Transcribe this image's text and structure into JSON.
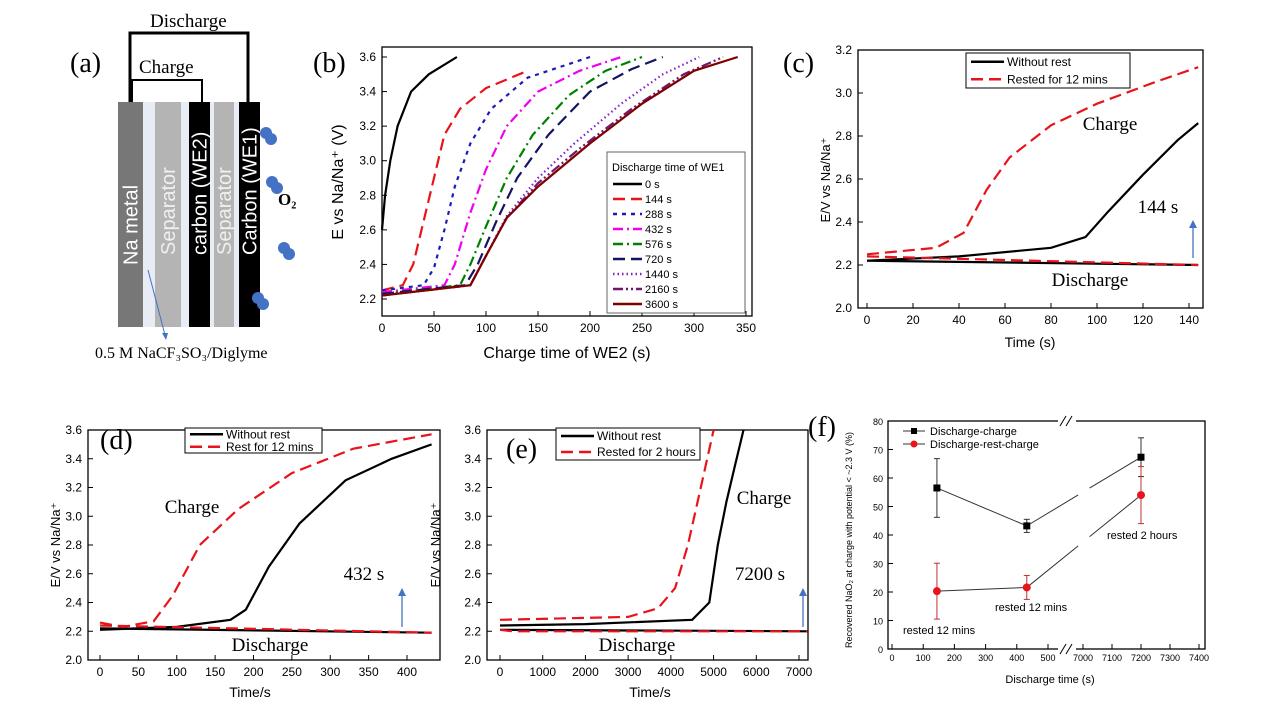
{
  "panel_labels": [
    "(a)",
    "(b)",
    "(c)",
    "(d)",
    "(e)",
    "(f)"
  ],
  "diagram": {
    "discharge_label": "Discharge",
    "charge_label": "Charge",
    "layers": [
      "Na metal",
      "Separator",
      "carbon (WE2)",
      "Separator",
      "Carbon (WE1)"
    ],
    "gas_label": "O₂",
    "electrolyte_label": "0.5 M NaCF₃SO₃/Diglyme",
    "colors": {
      "na_metal": "#777777",
      "separator": "#b4b4b4",
      "carbon": "#000000",
      "electrolyte": "#e8edf5",
      "o2": "#4472c4"
    }
  },
  "chart_data": [
    {
      "id": "b",
      "type": "line",
      "xlabel": "Charge time of WE2 (s)",
      "ylabel": "E vs Na/Na⁺ (V)",
      "xlim": [
        0,
        350
      ],
      "ylim": [
        2.2,
        3.6
      ],
      "xticks": [
        0,
        50,
        100,
        150,
        200,
        250,
        300,
        350
      ],
      "yticks": [
        2.2,
        2.4,
        2.6,
        2.8,
        3.0,
        3.2,
        3.4,
        3.6
      ],
      "legend_title": "Discharge time of WE1",
      "legend_placement": "bottom-right",
      "series": [
        {
          "name": "0 s",
          "color": "#000000",
          "style": "solid",
          "points": [
            [
              0,
              2.6
            ],
            [
              3,
              2.8
            ],
            [
              8,
              3.0
            ],
            [
              15,
              3.2
            ],
            [
              28,
              3.4
            ],
            [
              45,
              3.5
            ],
            [
              72,
              3.6
            ]
          ]
        },
        {
          "name": "144 s",
          "color": "#e8141c",
          "style": "dash",
          "points": [
            [
              0,
              2.25
            ],
            [
              20,
              2.28
            ],
            [
              30,
              2.4
            ],
            [
              40,
              2.65
            ],
            [
              50,
              2.9
            ],
            [
              60,
              3.15
            ],
            [
              75,
              3.3
            ],
            [
              100,
              3.42
            ],
            [
              140,
              3.52
            ]
          ]
        },
        {
          "name": "288 s",
          "color": "#1c1cb4",
          "style": "shortdash",
          "points": [
            [
              0,
              2.25
            ],
            [
              40,
              2.28
            ],
            [
              50,
              2.38
            ],
            [
              60,
              2.6
            ],
            [
              70,
              2.85
            ],
            [
              85,
              3.1
            ],
            [
              105,
              3.3
            ],
            [
              140,
              3.48
            ],
            [
              200,
              3.6
            ]
          ]
        },
        {
          "name": "432 s",
          "color": "#f000f0",
          "style": "dashdot",
          "points": [
            [
              0,
              2.24
            ],
            [
              60,
              2.28
            ],
            [
              70,
              2.4
            ],
            [
              85,
              2.7
            ],
            [
              100,
              2.95
            ],
            [
              120,
              3.2
            ],
            [
              150,
              3.4
            ],
            [
              190,
              3.52
            ],
            [
              230,
              3.6
            ]
          ]
        },
        {
          "name": "576 s",
          "color": "#008000",
          "style": "dashdot",
          "points": [
            [
              0,
              2.23
            ],
            [
              75,
              2.28
            ],
            [
              85,
              2.4
            ],
            [
              100,
              2.62
            ],
            [
              120,
              2.9
            ],
            [
              145,
              3.15
            ],
            [
              180,
              3.38
            ],
            [
              215,
              3.52
            ],
            [
              250,
              3.6
            ]
          ]
        },
        {
          "name": "720 s",
          "color": "#141464",
          "style": "dash",
          "points": [
            [
              0,
              2.23
            ],
            [
              80,
              2.28
            ],
            [
              92,
              2.4
            ],
            [
              110,
              2.65
            ],
            [
              130,
              2.9
            ],
            [
              160,
              3.15
            ],
            [
              200,
              3.4
            ],
            [
              240,
              3.53
            ],
            [
              270,
              3.6
            ]
          ]
        },
        {
          "name": "1440 s",
          "color": "#8020d0",
          "style": "dot",
          "points": [
            [
              0,
              2.22
            ],
            [
              85,
              2.28
            ],
            [
              100,
              2.45
            ],
            [
              120,
              2.68
            ],
            [
              150,
              2.9
            ],
            [
              185,
              3.1
            ],
            [
              230,
              3.33
            ],
            [
              270,
              3.5
            ],
            [
              305,
              3.6
            ]
          ]
        },
        {
          "name": "2160 s",
          "color": "#701870",
          "style": "dashdotdot",
          "points": [
            [
              0,
              2.22
            ],
            [
              85,
              2.28
            ],
            [
              100,
              2.45
            ],
            [
              120,
              2.67
            ],
            [
              150,
              2.87
            ],
            [
              190,
              3.07
            ],
            [
              240,
              3.3
            ],
            [
              290,
              3.5
            ],
            [
              328,
              3.6
            ]
          ]
        },
        {
          "name": "3600 s",
          "color": "#800000",
          "style": "solid",
          "points": [
            [
              0,
              2.22
            ],
            [
              85,
              2.28
            ],
            [
              100,
              2.45
            ],
            [
              120,
              2.67
            ],
            [
              150,
              2.85
            ],
            [
              200,
              3.1
            ],
            [
              250,
              3.33
            ],
            [
              300,
              3.52
            ],
            [
              342,
              3.6
            ]
          ]
        }
      ]
    },
    {
      "id": "c",
      "type": "line",
      "xlabel": "Time (s)",
      "ylabel": "E/V vs Na/Na⁺",
      "xlim": [
        0,
        140
      ],
      "ylim": [
        2.0,
        3.2
      ],
      "xticks": [
        0,
        20,
        40,
        60,
        80,
        100,
        120,
        140
      ],
      "yticks": [
        2.0,
        2.2,
        2.4,
        2.6,
        2.8,
        3.0,
        3.2
      ],
      "legend_placement": "top-center",
      "series": [
        {
          "name": "Without rest",
          "color": "#000000",
          "style": "solid",
          "segments": [
            [
              [
                0,
                2.22
              ],
              [
                40,
                2.24
              ],
              [
                80,
                2.28
              ],
              [
                95,
                2.33
              ],
              [
                105,
                2.45
              ],
              [
                120,
                2.62
              ],
              [
                135,
                2.78
              ],
              [
                144,
                2.86
              ]
            ],
            [
              [
                0,
                2.22
              ],
              [
                144,
                2.2
              ]
            ]
          ]
        },
        {
          "name": "Rested for 12 mins",
          "color": "#e8141c",
          "style": "dash",
          "segments": [
            [
              [
                0,
                2.25
              ],
              [
                30,
                2.28
              ],
              [
                42,
                2.35
              ],
              [
                52,
                2.55
              ],
              [
                62,
                2.7
              ],
              [
                80,
                2.85
              ],
              [
                100,
                2.95
              ],
              [
                125,
                3.05
              ],
              [
                144,
                3.12
              ]
            ],
            [
              [
                0,
                2.24
              ],
              [
                144,
                2.2
              ]
            ]
          ]
        }
      ],
      "annotations": [
        "Charge",
        "Discharge",
        "144 s"
      ]
    },
    {
      "id": "d",
      "type": "line",
      "xlabel": "Time/s",
      "ylabel": "E/V vs Na/Na⁺",
      "xlim": [
        0,
        440
      ],
      "ylim": [
        2.0,
        3.6
      ],
      "xticks": [
        0,
        50,
        100,
        150,
        200,
        250,
        300,
        350,
        400
      ],
      "yticks": [
        2.0,
        2.2,
        2.4,
        2.6,
        2.8,
        3.0,
        3.2,
        3.4,
        3.6
      ],
      "legend_placement": "top-center",
      "series": [
        {
          "name": "Without rest",
          "color": "#000000",
          "style": "solid",
          "segments": [
            [
              [
                0,
                2.21
              ],
              [
                100,
                2.23
              ],
              [
                170,
                2.28
              ],
              [
                190,
                2.35
              ],
              [
                220,
                2.65
              ],
              [
                260,
                2.95
              ],
              [
                320,
                3.25
              ],
              [
                380,
                3.4
              ],
              [
                432,
                3.5
              ]
            ],
            [
              [
                0,
                2.22
              ],
              [
                432,
                2.19
              ]
            ]
          ]
        },
        {
          "name": "Rest for 12 mins",
          "color": "#e8141c",
          "style": "dash",
          "segments": [
            [
              [
                0,
                2.26
              ],
              [
                30,
                2.23
              ],
              [
                70,
                2.27
              ],
              [
                95,
                2.45
              ],
              [
                130,
                2.8
              ],
              [
                180,
                3.05
              ],
              [
                250,
                3.3
              ],
              [
                330,
                3.47
              ],
              [
                432,
                3.57
              ]
            ],
            [
              [
                0,
                2.24
              ],
              [
                432,
                2.19
              ]
            ]
          ]
        }
      ],
      "annotations": [
        "Charge",
        "Discharge",
        "432 s"
      ]
    },
    {
      "id": "e",
      "type": "line",
      "xlabel": "Time/s",
      "ylabel": "E/V vs Na/Na⁺",
      "xlim": [
        0,
        7300
      ],
      "ylim": [
        2.0,
        3.6
      ],
      "xticks": [
        0,
        1000,
        2000,
        3000,
        4000,
        5000,
        6000,
        7000
      ],
      "yticks": [
        2.0,
        2.2,
        2.4,
        2.6,
        2.8,
        3.0,
        3.2,
        3.4,
        3.6
      ],
      "legend_placement": "top-left",
      "series": [
        {
          "name": "Without rest",
          "color": "#000000",
          "style": "solid",
          "segments": [
            [
              [
                0,
                2.24
              ],
              [
                2000,
                2.25
              ],
              [
                4500,
                2.28
              ],
              [
                4900,
                2.4
              ],
              [
                5100,
                2.8
              ],
              [
                5300,
                3.1
              ],
              [
                5500,
                3.35
              ],
              [
                5700,
                3.6
              ]
            ],
            [
              [
                0,
                2.21
              ],
              [
                7200,
                2.2
              ]
            ]
          ]
        },
        {
          "name": "Rested for 2 hours",
          "color": "#e8141c",
          "style": "dash",
          "segments": [
            [
              [
                0,
                2.28
              ],
              [
                3000,
                2.3
              ],
              [
                3700,
                2.36
              ],
              [
                4100,
                2.5
              ],
              [
                4400,
                2.8
              ],
              [
                4700,
                3.2
              ],
              [
                5000,
                3.6
              ]
            ],
            [
              [
                0,
                2.21
              ],
              [
                300,
                2.2
              ],
              [
                7200,
                2.2
              ]
            ]
          ]
        }
      ],
      "annotations": [
        "Charge",
        "Discharge",
        "7200 s"
      ]
    },
    {
      "id": "f",
      "type": "scatter",
      "xlabel": "Discharge time (s)",
      "ylabel": "Recovered NaO₂ at charge with potential < ~2.3 V (%)",
      "xlim": [
        0,
        7400
      ],
      "x_break": [
        500,
        7000
      ],
      "ylim": [
        0,
        80
      ],
      "xticks": [
        0,
        100,
        200,
        300,
        400,
        500,
        7000,
        7100,
        7200,
        7300,
        7400
      ],
      "yticks": [
        0,
        10,
        20,
        30,
        40,
        50,
        60,
        70,
        80
      ],
      "legend_placement": "top-left",
      "series": [
        {
          "name": "Discharge-charge",
          "color": "#000000",
          "marker": "square",
          "x": [
            144,
            432,
            7200
          ],
          "y": [
            56.5,
            43.2,
            67.3
          ],
          "err": [
            10.3,
            2.3,
            6.8
          ]
        },
        {
          "name": "Discharge-rest-charge",
          "color": "#e8141c",
          "marker": "circle",
          "x": [
            144,
            432,
            7200
          ],
          "y": [
            20.3,
            21.6,
            54.0
          ],
          "err": [
            9.8,
            4.2,
            10.0
          ]
        }
      ],
      "annotations": [
        "rested 12 mins",
        "rested 12 mins",
        "rested 2 hours"
      ]
    }
  ]
}
